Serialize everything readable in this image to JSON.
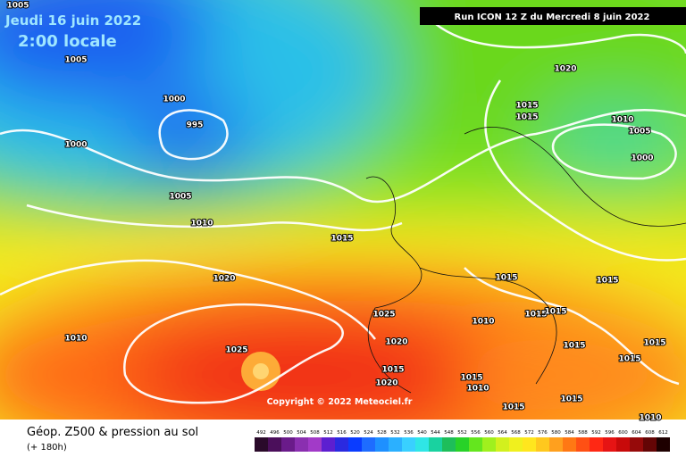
{
  "header": {
    "date": "Jeudi 16 juin 2022",
    "time": "2:00 locale",
    "run": "Run ICON 12 Z du Mercredi 8 juin 2022"
  },
  "copyright": "Copyright © 2022 Meteociel.fr",
  "footer": {
    "title": "Géop. Z500 & pression au sol",
    "lead": "(+ 180h)"
  },
  "isobar_labels": [
    "1005",
    "1005",
    "1000",
    "995",
    "1000",
    "1005",
    "1010",
    "1020",
    "1015",
    "1015",
    "1010",
    "1005",
    "1000",
    "1015",
    "1020",
    "1015",
    "1015",
    "1025",
    "1010",
    "1015",
    "1015",
    "1010",
    "1025",
    "1020",
    "1015",
    "1015",
    "1015",
    "1015",
    "1020",
    "1015",
    "1010",
    "1015",
    "1015",
    "1010"
  ],
  "legend": {
    "labels": [
      "492",
      "496",
      "500",
      "504",
      "508",
      "512",
      "516",
      "520",
      "524",
      "528",
      "532",
      "536",
      "540",
      "544",
      "548",
      "552",
      "556",
      "560",
      "564",
      "568",
      "572",
      "576",
      "580",
      "584",
      "588",
      "592",
      "596",
      "600",
      "604",
      "608",
      "612"
    ],
    "colors": [
      "#2a0a2a",
      "#4b0f5b",
      "#6a1b8a",
      "#8a2fb0",
      "#a23ac8",
      "#5d1fd0",
      "#2a2ae0",
      "#0a3cff",
      "#1e6cff",
      "#1e90ff",
      "#2bb0ff",
      "#39d0ff",
      "#2fe6e6",
      "#19d2a0",
      "#1ebe5a",
      "#28d228",
      "#64e61e",
      "#a0f01e",
      "#d2f01e",
      "#f0f01e",
      "#ffe61e",
      "#ffc81e",
      "#ffa01e",
      "#ff7814",
      "#ff5014",
      "#ff2814",
      "#e61414",
      "#c80a0a",
      "#960a0a",
      "#640505",
      "#1e0000"
    ]
  }
}
